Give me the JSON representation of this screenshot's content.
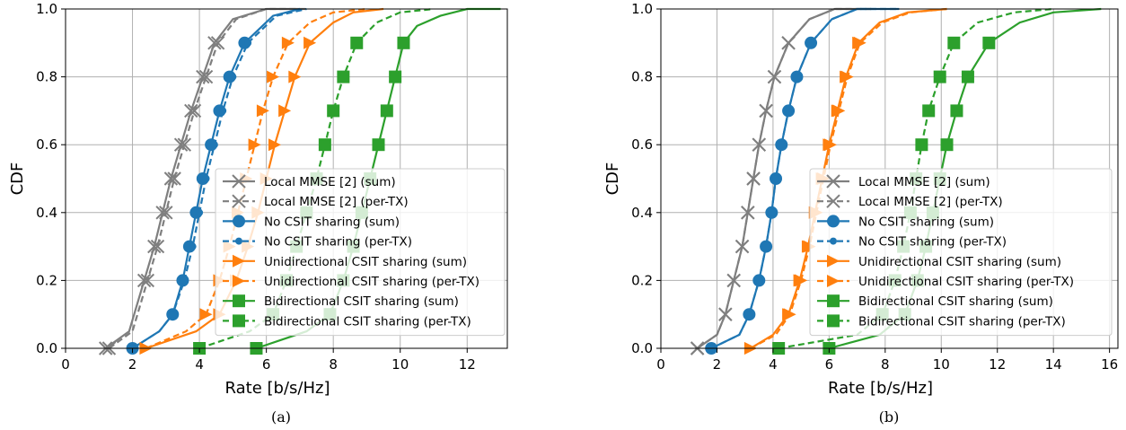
{
  "legend_entries": [
    {
      "label": "Local MMSE [2] (sum)",
      "color": "#7f7f7f",
      "dash": false,
      "marker": "x",
      "marker_size": "large"
    },
    {
      "label": "Local MMSE [2] (per-TX)",
      "color": "#7f7f7f",
      "dash": true,
      "marker": "x",
      "marker_size": "large"
    },
    {
      "label": "No CSIT sharing (sum)",
      "color": "#1f77b4",
      "dash": false,
      "marker": "circle",
      "marker_size": "large"
    },
    {
      "label": "No CSIT sharing (per-TX)",
      "color": "#1f77b4",
      "dash": true,
      "marker": "circle",
      "marker_size": "small"
    },
    {
      "label": "Unidirectional CSIT sharing (sum)",
      "color": "#ff7f0e",
      "dash": false,
      "marker": "triangle-right",
      "marker_size": "large"
    },
    {
      "label": "Unidirectional CSIT sharing (per-TX)",
      "color": "#ff7f0e",
      "dash": true,
      "marker": "triangle-right",
      "marker_size": "large"
    },
    {
      "label": "Bidirectional CSIT sharing (sum)",
      "color": "#2ca02c",
      "dash": false,
      "marker": "square",
      "marker_size": "large"
    },
    {
      "label": "Bidirectional CSIT sharing (per-TX)",
      "color": "#2ca02c",
      "dash": true,
      "marker": "square",
      "marker_size": "large"
    }
  ],
  "chart_data": [
    {
      "type": "line",
      "caption": "(a)",
      "xlabel": "Rate [b/s/Hz]",
      "ylabel": "CDF",
      "xlim": [
        0,
        13.2
      ],
      "ylim": [
        0,
        1
      ],
      "xticks": [
        0,
        2,
        4,
        6,
        8,
        10,
        12
      ],
      "yticks": [
        0.0,
        0.2,
        0.4,
        0.6,
        0.8,
        1.0
      ],
      "grid": true,
      "legend_position": "lower-right",
      "series": [
        {
          "name": "Local MMSE [2] (sum)",
          "x": [
            1.2,
            1.9,
            2.35,
            2.65,
            2.9,
            3.15,
            3.45,
            3.75,
            4.1,
            4.45,
            5.0,
            6.0,
            7.0
          ],
          "y": [
            0.0,
            0.05,
            0.2,
            0.3,
            0.4,
            0.5,
            0.6,
            0.7,
            0.8,
            0.9,
            0.97,
            1.0,
            1.0
          ],
          "markers_at": [
            0,
            2,
            3,
            4,
            5,
            6,
            7,
            8,
            9
          ]
        },
        {
          "name": "Local MMSE [2] (per-TX)",
          "x": [
            1.3,
            2.0,
            2.45,
            2.75,
            3.0,
            3.25,
            3.55,
            3.85,
            4.2,
            4.55,
            5.1,
            6.0,
            7.2
          ],
          "y": [
            0.0,
            0.05,
            0.2,
            0.3,
            0.4,
            0.5,
            0.6,
            0.7,
            0.8,
            0.9,
            0.97,
            1.0,
            1.0
          ],
          "markers_at": [
            0,
            2,
            3,
            4,
            5,
            6,
            7,
            8,
            9
          ]
        },
        {
          "name": "No CSIT sharing (sum)",
          "x": [
            2.0,
            2.8,
            3.2,
            3.5,
            3.7,
            3.9,
            4.1,
            4.35,
            4.6,
            4.9,
            5.35,
            6.2,
            7.0
          ],
          "y": [
            0.0,
            0.05,
            0.1,
            0.2,
            0.3,
            0.4,
            0.5,
            0.6,
            0.7,
            0.8,
            0.9,
            0.98,
            1.0
          ],
          "markers_at": [
            0,
            2,
            3,
            4,
            5,
            6,
            7,
            8,
            9,
            10
          ]
        },
        {
          "name": "No CSIT sharing (per-TX)",
          "x": [
            2.0,
            2.8,
            3.2,
            3.55,
            3.8,
            4.0,
            4.2,
            4.45,
            4.7,
            5.0,
            5.45,
            6.3,
            7.2
          ],
          "y": [
            0.0,
            0.05,
            0.1,
            0.2,
            0.3,
            0.4,
            0.5,
            0.6,
            0.7,
            0.8,
            0.9,
            0.98,
            1.0
          ],
          "markers_at": [
            0,
            2,
            3,
            4,
            5,
            6,
            7,
            8,
            9,
            10
          ]
        },
        {
          "name": "Unidirectional CSIT sharing (sum)",
          "x": [
            2.4,
            3.9,
            4.6,
            5.1,
            5.45,
            5.75,
            6.0,
            6.25,
            6.55,
            6.85,
            7.3,
            8.0,
            8.6,
            9.5
          ],
          "y": [
            0.0,
            0.05,
            0.1,
            0.2,
            0.3,
            0.4,
            0.5,
            0.6,
            0.7,
            0.8,
            0.9,
            0.96,
            0.99,
            1.0
          ],
          "markers_at": [
            0,
            2,
            3,
            4,
            5,
            6,
            7,
            8,
            9,
            10
          ]
        },
        {
          "name": "Unidirectional CSIT sharing (per-TX)",
          "x": [
            2.4,
            3.6,
            4.2,
            4.6,
            4.9,
            5.15,
            5.4,
            5.65,
            5.9,
            6.2,
            6.65,
            7.3,
            8.0,
            9.0
          ],
          "y": [
            0.0,
            0.05,
            0.1,
            0.2,
            0.3,
            0.4,
            0.5,
            0.6,
            0.7,
            0.8,
            0.9,
            0.96,
            0.99,
            1.0
          ],
          "markers_at": [
            0,
            2,
            3,
            4,
            5,
            6,
            7,
            8,
            9,
            10
          ]
        },
        {
          "name": "Bidirectional CSIT sharing (sum)",
          "x": [
            5.7,
            7.2,
            7.9,
            8.3,
            8.6,
            8.85,
            9.1,
            9.35,
            9.6,
            9.85,
            10.1,
            10.5,
            11.2,
            12.0,
            13.0
          ],
          "y": [
            0.0,
            0.05,
            0.1,
            0.2,
            0.3,
            0.4,
            0.5,
            0.6,
            0.7,
            0.8,
            0.9,
            0.95,
            0.98,
            1.0,
            1.0
          ],
          "markers_at": [
            0,
            2,
            3,
            4,
            5,
            6,
            7,
            8,
            9,
            10
          ]
        },
        {
          "name": "Bidirectional CSIT sharing (per-TX)",
          "x": [
            4.0,
            5.5,
            6.2,
            6.6,
            6.9,
            7.2,
            7.5,
            7.75,
            8.0,
            8.3,
            8.7,
            9.3,
            10.0,
            11.0
          ],
          "y": [
            0.0,
            0.05,
            0.1,
            0.2,
            0.3,
            0.4,
            0.5,
            0.6,
            0.7,
            0.8,
            0.9,
            0.96,
            0.99,
            1.0
          ],
          "markers_at": [
            0,
            2,
            3,
            4,
            5,
            6,
            7,
            8,
            9,
            10
          ]
        }
      ]
    },
    {
      "type": "line",
      "caption": "(b)",
      "xlabel": "Rate [b/s/Hz]",
      "ylabel": "CDF",
      "xlim": [
        0,
        16.3
      ],
      "ylim": [
        0,
        1
      ],
      "xticks": [
        0,
        2,
        4,
        6,
        8,
        10,
        12,
        14,
        16
      ],
      "yticks": [
        0.0,
        0.2,
        0.4,
        0.6,
        0.8,
        1.0
      ],
      "grid": true,
      "legend_position": "lower-right",
      "series": [
        {
          "name": "Local MMSE [2] (sum)",
          "x": [
            1.3,
            2.0,
            2.3,
            2.6,
            2.9,
            3.1,
            3.3,
            3.5,
            3.75,
            4.05,
            4.55,
            5.3,
            6.2,
            7.5
          ],
          "y": [
            0.0,
            0.04,
            0.1,
            0.2,
            0.3,
            0.4,
            0.5,
            0.6,
            0.7,
            0.8,
            0.9,
            0.97,
            1.0,
            1.0
          ],
          "markers_at": [
            0,
            2,
            3,
            4,
            5,
            6,
            7,
            8,
            9,
            10
          ]
        },
        {
          "name": "Local MMSE [2] (per-TX)",
          "x": [
            1.3,
            2.0,
            2.3,
            2.6,
            2.9,
            3.1,
            3.3,
            3.5,
            3.75,
            4.05,
            4.55,
            5.3,
            6.2,
            7.5
          ],
          "y": [
            0.0,
            0.04,
            0.1,
            0.2,
            0.3,
            0.4,
            0.5,
            0.6,
            0.7,
            0.8,
            0.9,
            0.97,
            1.0,
            1.0
          ],
          "markers_at": [
            0,
            2,
            3,
            4,
            5,
            6,
            7,
            8,
            9,
            10
          ]
        },
        {
          "name": "No CSIT sharing (sum)",
          "x": [
            1.8,
            2.8,
            3.15,
            3.5,
            3.75,
            3.95,
            4.1,
            4.3,
            4.55,
            4.85,
            5.35,
            6.1,
            7.0,
            8.5
          ],
          "y": [
            0.0,
            0.04,
            0.1,
            0.2,
            0.3,
            0.4,
            0.5,
            0.6,
            0.7,
            0.8,
            0.9,
            0.97,
            1.0,
            1.0
          ],
          "markers_at": [
            0,
            2,
            3,
            4,
            5,
            6,
            7,
            8,
            9,
            10
          ]
        },
        {
          "name": "No CSIT sharing (per-TX)",
          "x": [
            1.8,
            2.8,
            3.15,
            3.5,
            3.75,
            3.95,
            4.1,
            4.3,
            4.55,
            4.85,
            5.35,
            6.1,
            7.0,
            8.5
          ],
          "y": [
            0.0,
            0.04,
            0.1,
            0.2,
            0.3,
            0.4,
            0.5,
            0.6,
            0.7,
            0.8,
            0.9,
            0.97,
            1.0,
            1.0
          ],
          "markers_at": [
            0,
            2,
            3,
            4,
            5,
            6,
            7,
            8,
            9,
            10
          ]
        },
        {
          "name": "Unidirectional CSIT sharing (sum)",
          "x": [
            3.2,
            4.0,
            4.55,
            4.95,
            5.25,
            5.5,
            5.75,
            6.0,
            6.3,
            6.6,
            7.05,
            7.8,
            8.8,
            10.2
          ],
          "y": [
            0.0,
            0.04,
            0.1,
            0.2,
            0.3,
            0.4,
            0.5,
            0.6,
            0.7,
            0.8,
            0.9,
            0.96,
            0.99,
            1.0
          ],
          "markers_at": [
            0,
            2,
            3,
            4,
            5,
            6,
            7,
            8,
            9,
            10
          ]
        },
        {
          "name": "Unidirectional CSIT sharing (per-TX)",
          "x": [
            3.2,
            4.1,
            4.6,
            5.0,
            5.3,
            5.55,
            5.8,
            6.05,
            6.35,
            6.65,
            7.1,
            7.9,
            8.9,
            10.2
          ],
          "y": [
            0.0,
            0.04,
            0.1,
            0.2,
            0.3,
            0.4,
            0.5,
            0.6,
            0.7,
            0.8,
            0.9,
            0.96,
            0.99,
            1.0
          ],
          "markers_at": [
            0,
            2,
            3,
            4,
            5,
            6,
            7,
            8,
            9,
            10
          ]
        },
        {
          "name": "Bidirectional CSIT sharing (sum)",
          "x": [
            6.0,
            7.8,
            8.7,
            9.15,
            9.45,
            9.7,
            9.95,
            10.2,
            10.55,
            10.95,
            11.7,
            12.8,
            14.0,
            15.7
          ],
          "y": [
            0.0,
            0.04,
            0.1,
            0.2,
            0.3,
            0.4,
            0.5,
            0.6,
            0.7,
            0.8,
            0.9,
            0.96,
            0.99,
            1.0
          ],
          "markers_at": [
            0,
            2,
            3,
            4,
            5,
            6,
            7,
            8,
            9,
            10
          ]
        },
        {
          "name": "Bidirectional CSIT sharing (per-TX)",
          "x": [
            4.2,
            7.0,
            7.9,
            8.35,
            8.65,
            8.9,
            9.1,
            9.3,
            9.55,
            9.95,
            10.45,
            11.3,
            12.6,
            14.0
          ],
          "y": [
            0.0,
            0.04,
            0.1,
            0.2,
            0.3,
            0.4,
            0.5,
            0.6,
            0.7,
            0.8,
            0.9,
            0.96,
            0.99,
            1.0
          ],
          "markers_at": [
            0,
            2,
            3,
            4,
            5,
            6,
            7,
            8,
            9,
            10
          ]
        }
      ]
    }
  ]
}
